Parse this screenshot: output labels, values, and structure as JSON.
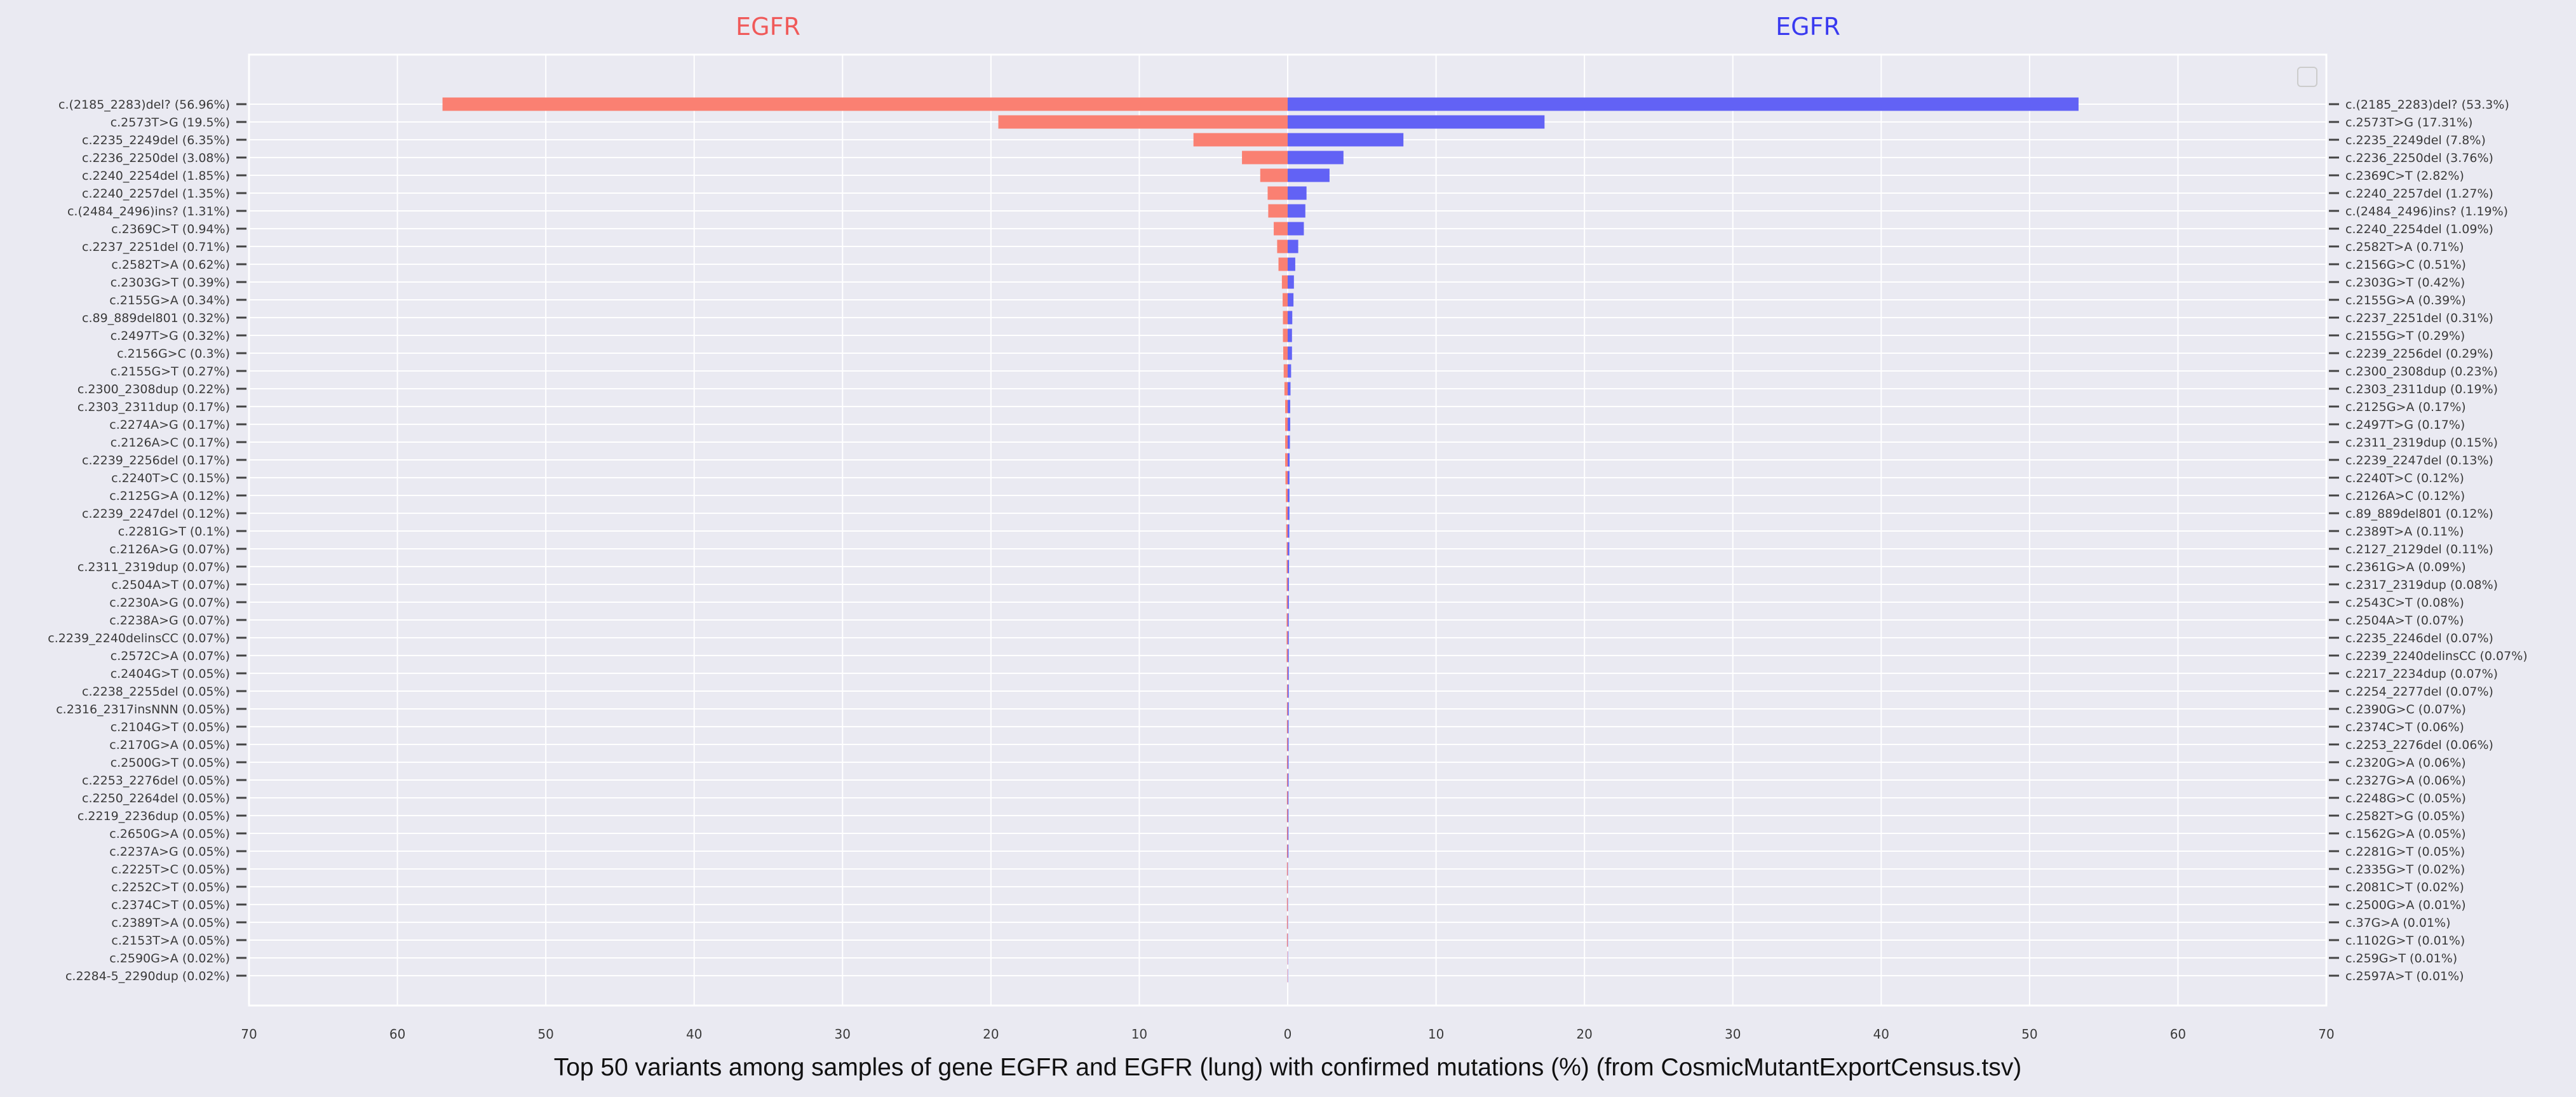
{
  "chart_data": {
    "type": "bar",
    "orientation": "horizontal-mirrored",
    "xlabel": "Top 50 variants among samples of gene EGFR and EGFR (lung) with confirmed mutations (%) (from CosmicMutantExportCensus.tsv)",
    "xlim": [
      -70,
      70
    ],
    "x_ticks": [
      70,
      60,
      50,
      40,
      30,
      20,
      10,
      0,
      10,
      20,
      30,
      40,
      50,
      60,
      70
    ],
    "grid": true,
    "legend": "top-right (empty)",
    "panels": [
      {
        "side": "left",
        "title": "EGFR",
        "title_color": "#f05a5a",
        "bar_color": "#fa8072",
        "labels": [
          "c.(2185_2283)del? (56.96%)",
          "c.2573T>G (19.5%)",
          "c.2235_2249del (6.35%)",
          "c.2236_2250del (3.08%)",
          "c.2240_2254del (1.85%)",
          "c.2240_2257del (1.35%)",
          "c.(2484_2496)ins? (1.31%)",
          "c.2369C>T (0.94%)",
          "c.2237_2251del (0.71%)",
          "c.2582T>A (0.62%)",
          "c.2303G>T (0.39%)",
          "c.2155G>A (0.34%)",
          "c.89_889del801 (0.32%)",
          "c.2497T>G (0.32%)",
          "c.2156G>C (0.3%)",
          "c.2155G>T (0.27%)",
          "c.2300_2308dup (0.22%)",
          "c.2303_2311dup (0.17%)",
          "c.2274A>G (0.17%)",
          "c.2126A>C (0.17%)",
          "c.2239_2256del (0.17%)",
          "c.2240T>C (0.15%)",
          "c.2125G>A (0.12%)",
          "c.2239_2247del (0.12%)",
          "c.2281G>T (0.1%)",
          "c.2126A>G (0.07%)",
          "c.2311_2319dup (0.07%)",
          "c.2504A>T (0.07%)",
          "c.2230A>G (0.07%)",
          "c.2238A>G (0.07%)",
          "c.2239_2240delinsCC (0.07%)",
          "c.2572C>A (0.07%)",
          "c.2404G>T (0.05%)",
          "c.2238_2255del (0.05%)",
          "c.2316_2317insNNN (0.05%)",
          "c.2104G>T (0.05%)",
          "c.2170G>A (0.05%)",
          "c.2500G>T (0.05%)",
          "c.2253_2276del (0.05%)",
          "c.2250_2264del (0.05%)",
          "c.2219_2236dup (0.05%)",
          "c.2650G>A (0.05%)",
          "c.2237A>G (0.05%)",
          "c.2225T>C (0.05%)",
          "c.2252C>T (0.05%)",
          "c.2374C>T (0.05%)",
          "c.2389T>A (0.05%)",
          "c.2153T>A (0.05%)",
          "c.2590G>A (0.02%)",
          "c.2284-5_2290dup (0.02%)"
        ],
        "values": [
          56.96,
          19.5,
          6.35,
          3.08,
          1.85,
          1.35,
          1.31,
          0.94,
          0.71,
          0.62,
          0.39,
          0.34,
          0.32,
          0.32,
          0.3,
          0.27,
          0.22,
          0.17,
          0.17,
          0.17,
          0.17,
          0.15,
          0.12,
          0.12,
          0.1,
          0.07,
          0.07,
          0.07,
          0.07,
          0.07,
          0.07,
          0.07,
          0.05,
          0.05,
          0.05,
          0.05,
          0.05,
          0.05,
          0.05,
          0.05,
          0.05,
          0.05,
          0.05,
          0.05,
          0.05,
          0.05,
          0.05,
          0.05,
          0.02,
          0.02
        ]
      },
      {
        "side": "right",
        "title": "EGFR",
        "title_color": "#3a3af0",
        "bar_color": "#6262f5",
        "labels": [
          "c.(2185_2283)del? (53.3%)",
          "c.2573T>G (17.31%)",
          "c.2235_2249del (7.8%)",
          "c.2236_2250del (3.76%)",
          "c.2369C>T (2.82%)",
          "c.2240_2257del (1.27%)",
          "c.(2484_2496)ins? (1.19%)",
          "c.2240_2254del (1.09%)",
          "c.2582T>A (0.71%)",
          "c.2156G>C (0.51%)",
          "c.2303G>T (0.42%)",
          "c.2155G>A (0.39%)",
          "c.2237_2251del (0.31%)",
          "c.2155G>T (0.29%)",
          "c.2239_2256del (0.29%)",
          "c.2300_2308dup (0.23%)",
          "c.2303_2311dup (0.19%)",
          "c.2125G>A (0.17%)",
          "c.2497T>G (0.17%)",
          "c.2311_2319dup (0.15%)",
          "c.2239_2247del (0.13%)",
          "c.2240T>C (0.12%)",
          "c.2126A>C (0.12%)",
          "c.89_889del801 (0.12%)",
          "c.2389T>A (0.11%)",
          "c.2127_2129del (0.11%)",
          "c.2361G>A (0.09%)",
          "c.2317_2319dup (0.08%)",
          "c.2543C>T (0.08%)",
          "c.2504A>T (0.07%)",
          "c.2235_2246del (0.07%)",
          "c.2239_2240delinsCC (0.07%)",
          "c.2217_2234dup (0.07%)",
          "c.2254_2277del (0.07%)",
          "c.2390G>C (0.07%)",
          "c.2374C>T (0.06%)",
          "c.2253_2276del (0.06%)",
          "c.2320G>A (0.06%)",
          "c.2327G>A (0.06%)",
          "c.2248G>C (0.05%)",
          "c.2582T>G (0.05%)",
          "c.1562G>A (0.05%)",
          "c.2281G>T (0.05%)",
          "c.2335G>T (0.02%)",
          "c.2081C>T (0.02%)",
          "c.2500G>A (0.01%)",
          "c.37G>A (0.01%)",
          "c.1102G>T (0.01%)",
          "c.259G>T (0.01%)",
          "c.2597A>T (0.01%)"
        ],
        "values": [
          53.3,
          17.31,
          7.8,
          3.76,
          2.82,
          1.27,
          1.19,
          1.09,
          0.71,
          0.51,
          0.42,
          0.39,
          0.31,
          0.29,
          0.29,
          0.23,
          0.19,
          0.17,
          0.17,
          0.15,
          0.13,
          0.12,
          0.12,
          0.12,
          0.11,
          0.11,
          0.09,
          0.08,
          0.08,
          0.07,
          0.07,
          0.07,
          0.07,
          0.07,
          0.07,
          0.06,
          0.06,
          0.06,
          0.06,
          0.05,
          0.05,
          0.05,
          0.05,
          0.02,
          0.02,
          0.01,
          0.01,
          0.01,
          0.01,
          0.01
        ]
      }
    ]
  }
}
